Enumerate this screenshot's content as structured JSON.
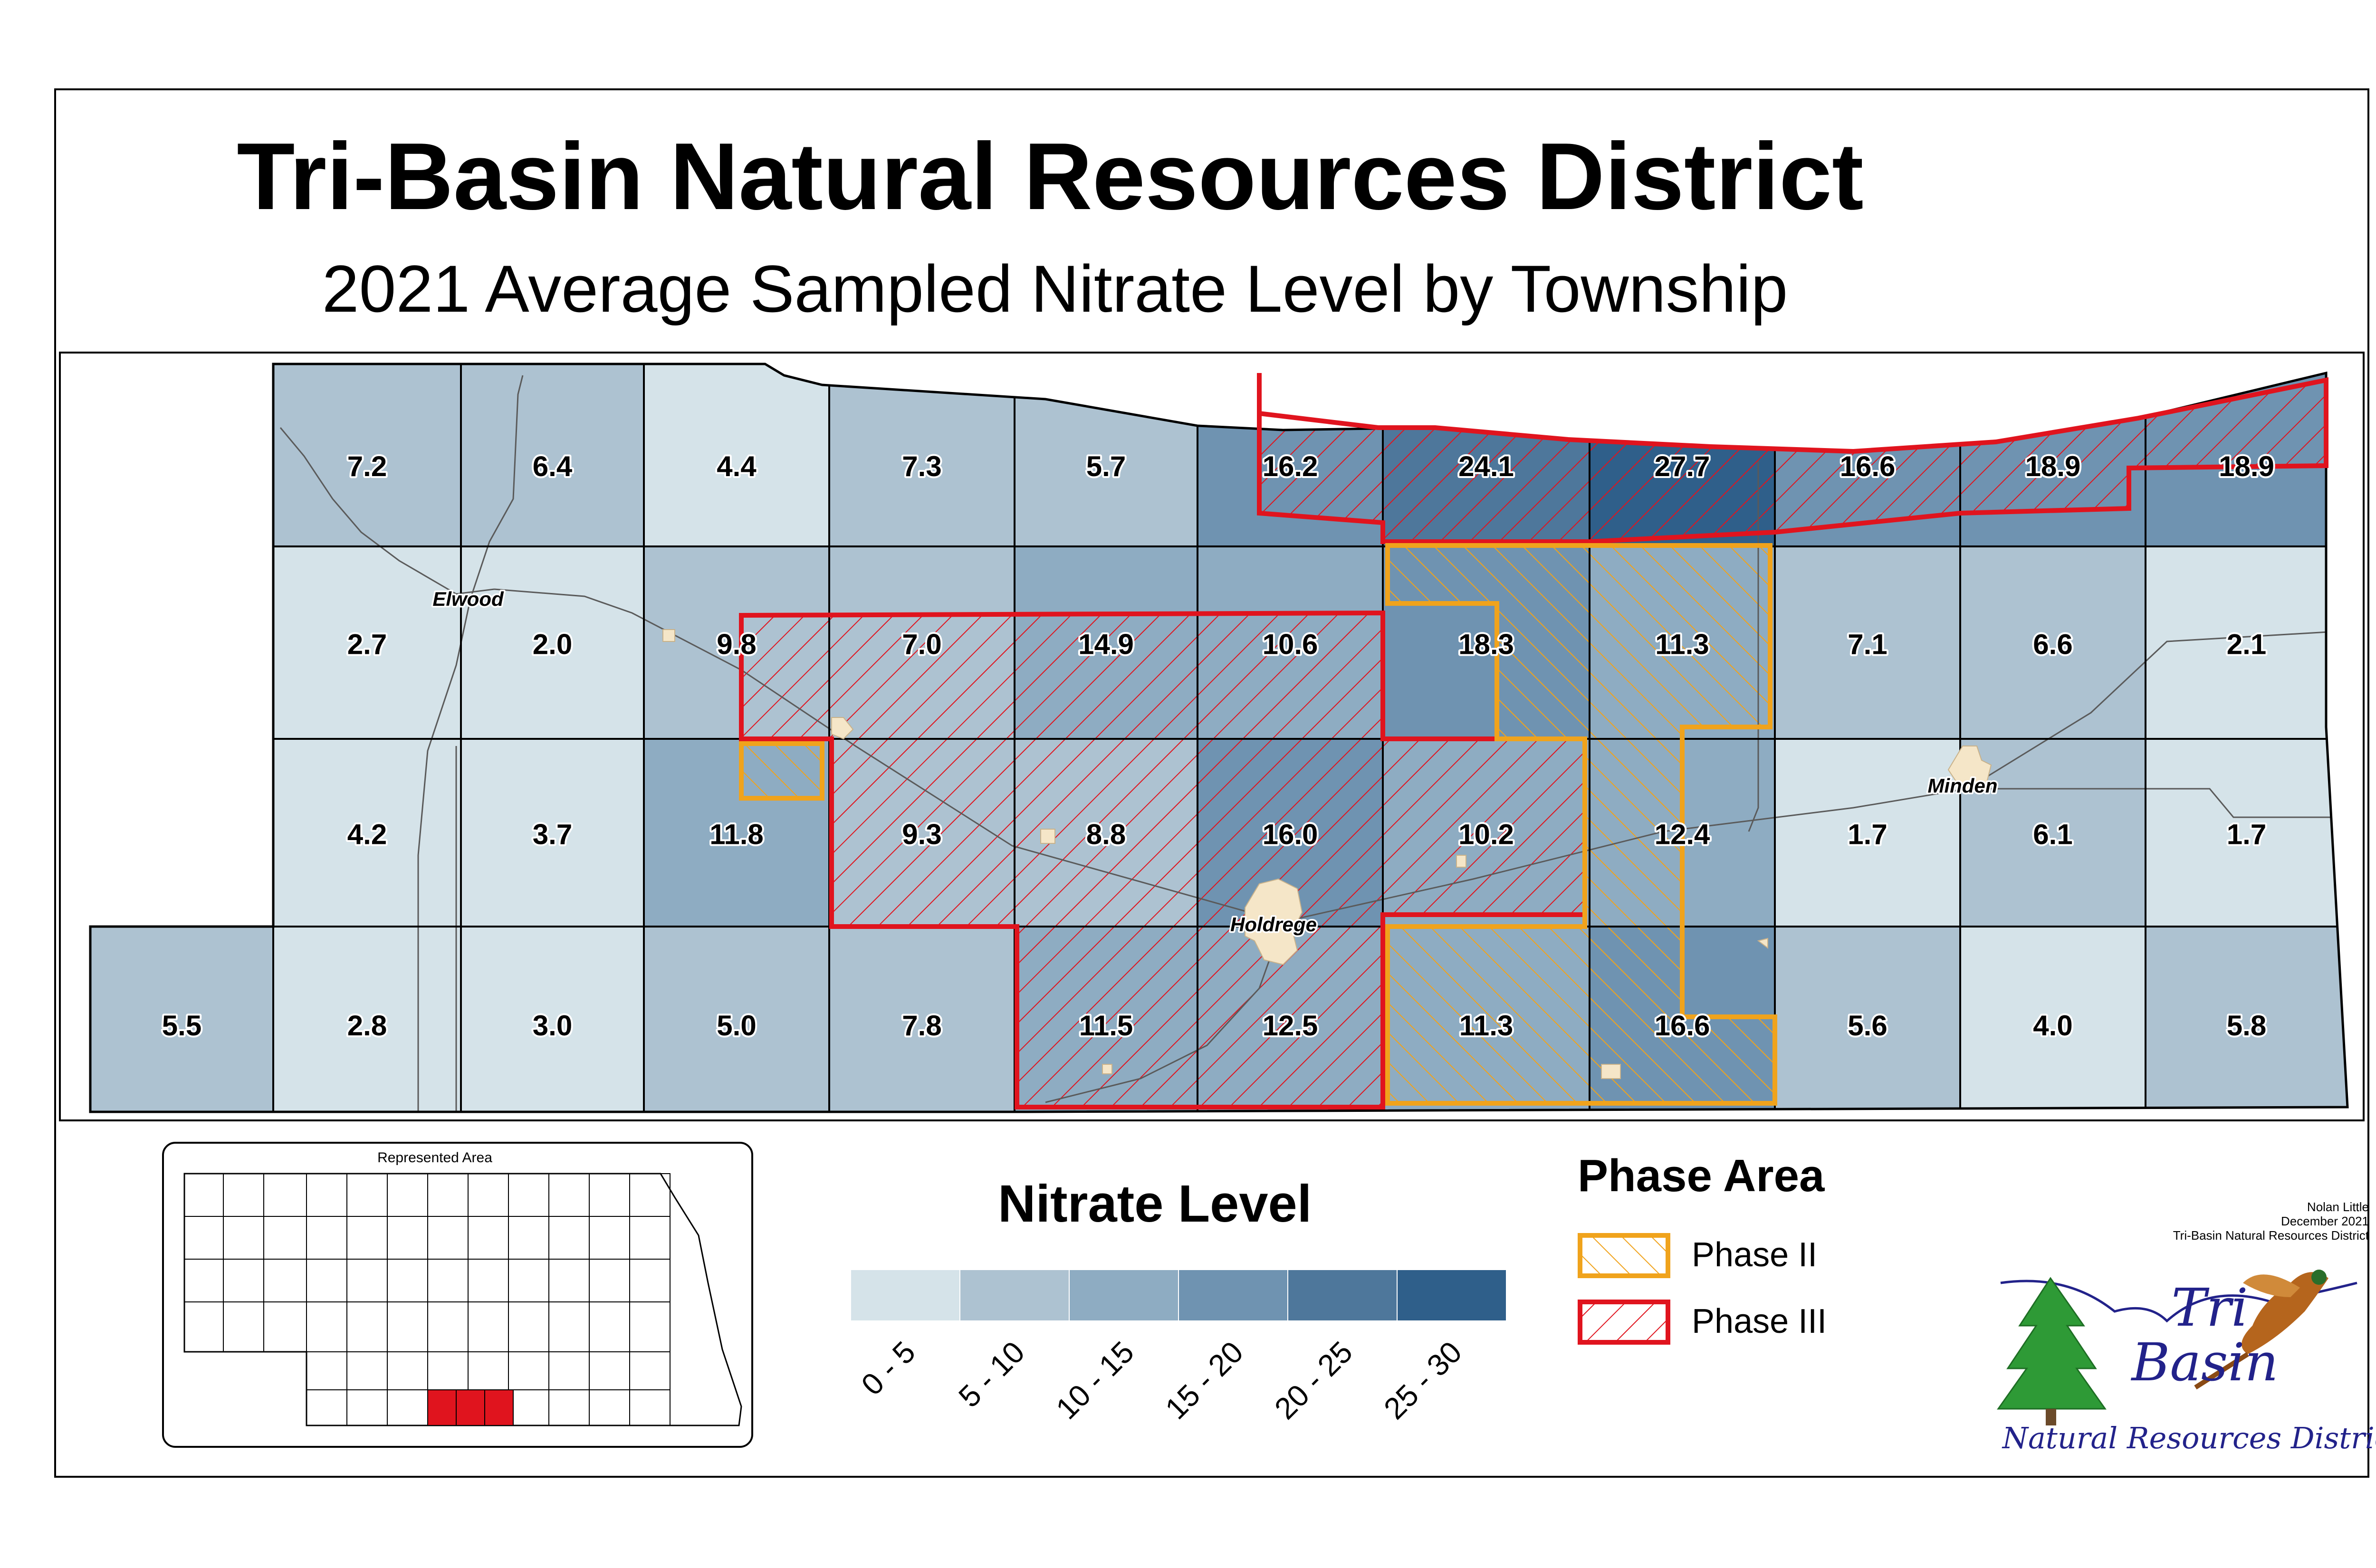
{
  "title": "Tri-Basin Natural Resources District",
  "subtitle": "2021 Average Sampled Nitrate Level by Township",
  "colors": {
    "c0_5": "#d5e3e9",
    "c5_10": "#adc2d1",
    "c10_15": "#8eacc2",
    "c15_20": "#6f93b1",
    "c20_25": "#4e779b",
    "c25_30": "#2f5f8a",
    "phase2": "#f0a31c",
    "phase3": "#e0141e",
    "town": "#f5e6c8"
  },
  "townships": [
    {
      "label": "7.2"
    },
    {
      "label": "6.4"
    },
    {
      "label": "4.4"
    },
    {
      "label": "7.3"
    },
    {
      "label": "5.7"
    },
    {
      "label": "16.2"
    },
    {
      "label": "24.1"
    },
    {
      "label": "27.7"
    },
    {
      "label": "16.6"
    },
    {
      "label": "18.9"
    },
    {
      "label": "18.9"
    },
    {
      "label": "2.7"
    },
    {
      "label": "2.0"
    },
    {
      "label": "9.8"
    },
    {
      "label": "7.0"
    },
    {
      "label": "14.9"
    },
    {
      "label": "10.6"
    },
    {
      "label": "18.3"
    },
    {
      "label": "11.3"
    },
    {
      "label": "7.1"
    },
    {
      "label": "6.6"
    },
    {
      "label": "2.1"
    },
    {
      "label": "4.2"
    },
    {
      "label": "3.7"
    },
    {
      "label": "11.8"
    },
    {
      "label": "9.3"
    },
    {
      "label": "8.8"
    },
    {
      "label": "16.0"
    },
    {
      "label": "10.2"
    },
    {
      "label": "12.4"
    },
    {
      "label": "1.7"
    },
    {
      "label": "6.1"
    },
    {
      "label": "1.7"
    },
    {
      "label": "5.5"
    },
    {
      "label": "2.8"
    },
    {
      "label": "3.0"
    },
    {
      "label": "5.0"
    },
    {
      "label": "7.8"
    },
    {
      "label": "11.5"
    },
    {
      "label": "12.5"
    },
    {
      "label": "11.3"
    },
    {
      "label": "16.6"
    },
    {
      "label": "5.6"
    },
    {
      "label": "4.0"
    },
    {
      "label": "5.8"
    }
  ],
  "towns": [
    "Elwood",
    "Holdrege",
    "Minden"
  ],
  "inset": {
    "title": "Represented Area"
  },
  "nitrate_legend": {
    "title": "Nitrate Level",
    "classes": [
      {
        "label": "0 - 5",
        "color": "#d5e3e9"
      },
      {
        "label": "5 - 10",
        "color": "#adc2d1"
      },
      {
        "label": "10 - 15",
        "color": "#8eacc2"
      },
      {
        "label": "15 - 20",
        "color": "#6f93b1"
      },
      {
        "label": "20 - 25",
        "color": "#4e779b"
      },
      {
        "label": "25 - 30",
        "color": "#2f5f8a"
      }
    ]
  },
  "phase_legend": {
    "title": "Phase Area",
    "items": [
      {
        "label": "Phase II",
        "color": "#f0a31c"
      },
      {
        "label": "Phase III",
        "color": "#e0141e"
      }
    ]
  },
  "credit": {
    "author": "Nolan Little",
    "date": "December 2021",
    "org": "Tri-Basin Natural Resources District"
  },
  "logo": {
    "line1": "Tri",
    "line2": "Basin",
    "line3": "Natural Resources District"
  }
}
